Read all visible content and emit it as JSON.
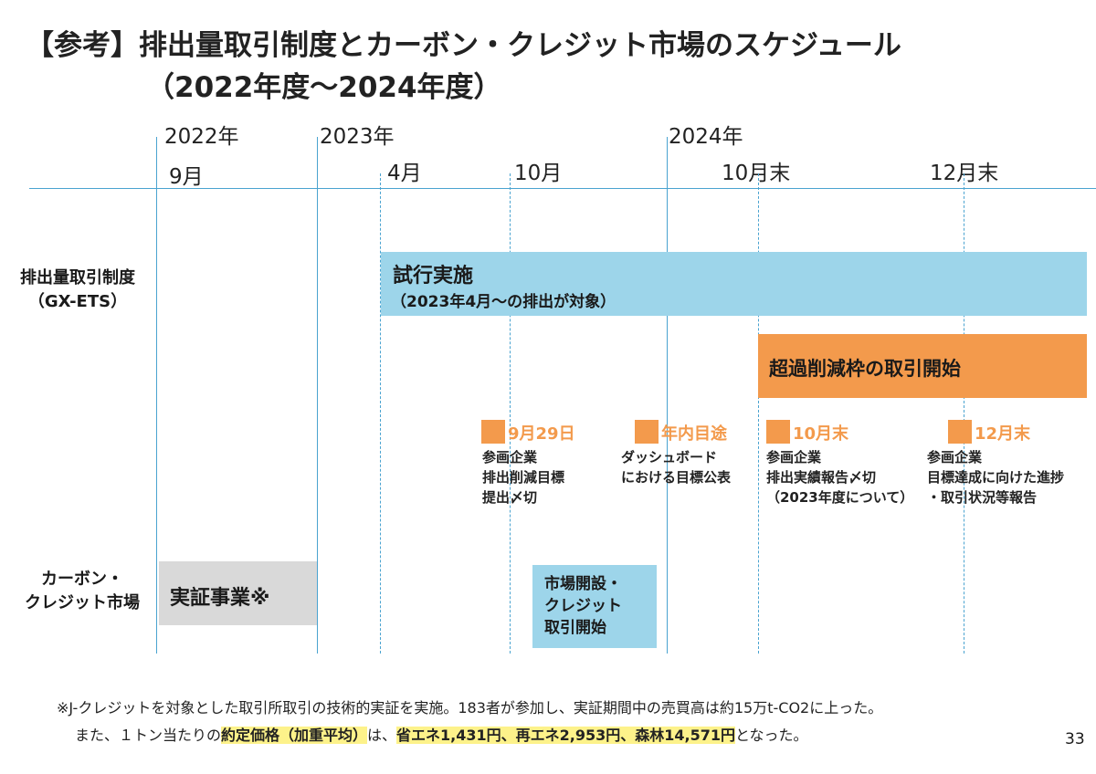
{
  "title": {
    "line1": "【参考】排出量取引制度とカーボン・クレジット市場のスケジュール",
    "line2": "（2022年度～2024年度）"
  },
  "timeline": {
    "y2022": "2022年",
    "m2022_9": "9月",
    "y2023": "2023年",
    "m2023_4": "4月",
    "m2023_10": "10月",
    "y2024": "2024年",
    "m2024_10": "10月末",
    "m2024_12": "12月末"
  },
  "rows": {
    "ets_line1": "排出量取引制度",
    "ets_line2": "（GX-ETS）",
    "carbon_line1": "カーボン・",
    "carbon_line2": "クレジット市場"
  },
  "bars": {
    "trial_title": "試行実施",
    "trial_sub": "（2023年4月～の排出が対象）",
    "excess": "超過削減枠の取引開始",
    "demo": "実証事業※",
    "market_lines": [
      "市場開設・",
      "クレジット",
      "取引開始"
    ]
  },
  "milestones": [
    {
      "date": "9月29日",
      "lines": [
        "参画企業",
        "排出削減目標",
        "提出〆切"
      ]
    },
    {
      "date": "年内目途",
      "lines": [
        "ダッシュボード",
        "における目標公表"
      ]
    },
    {
      "date": "10月末",
      "lines": [
        "参画企業",
        "排出実績報告〆切",
        "（2023年度について）"
      ]
    },
    {
      "date": "12月末",
      "lines": [
        "参画企業",
        "目標達成に向けた進捗",
        "・取引状況等報告"
      ]
    }
  ],
  "footnote": {
    "line1": "※J-クレジットを対象とした取引所取引の技術的実証を実施。183者が参加し、実証期間中の売買高は約15万t-CO2に上った。",
    "line2_a": "また、１トン当たりの",
    "line2_b": "約定価格（加重平均）",
    "line2_c": "は、",
    "line2_d": "省エネ1,431円、再エネ2,953円、森林14,571円",
    "line2_e": "となった。"
  },
  "page_number": "33",
  "colors": {
    "blue_bar": "#9dd5ea",
    "orange": "#f39a4c",
    "gray_bar": "#d9d9d9",
    "line": "#4aa3d0",
    "highlight": "#fdf28a"
  }
}
